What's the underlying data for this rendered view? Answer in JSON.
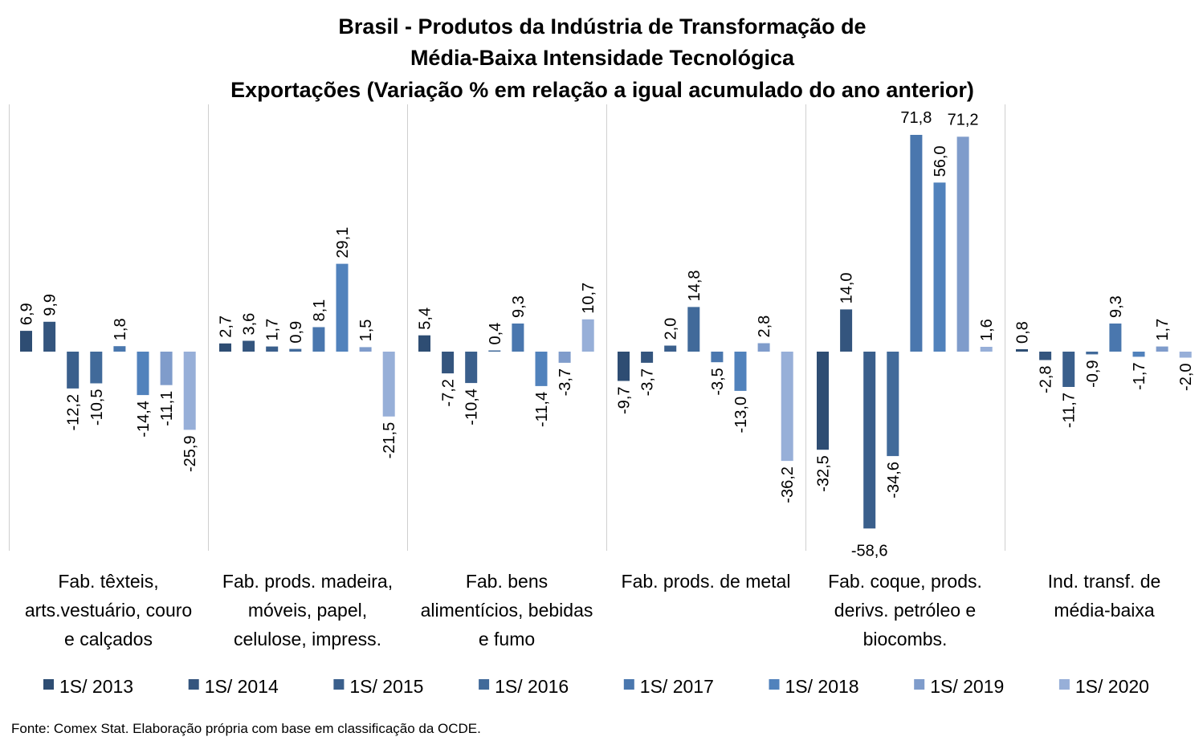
{
  "chart_data": {
    "type": "bar",
    "title": [
      "Brasil - Produtos da Indústria de Transformação de",
      "Média-Baixa Intensidade Tecnológica",
      "Exportações (Variação % em relação a igual acumulado do ano anterior)"
    ],
    "categories": [
      [
        "Fab. têxteis,",
        "arts.vestuário, couro",
        "e calçados"
      ],
      [
        "Fab. prods. madeira,",
        "móveis, papel,",
        "celulose, impress."
      ],
      [
        "Fab. bens",
        "alimentícios, bebidas",
        "e fumo"
      ],
      [
        "Fab. prods. de metal"
      ],
      [
        "Fab. coque, prods.",
        "derivs. petróleo e",
        "biocombs."
      ],
      [
        "Ind. transf. de",
        "média-baixa"
      ]
    ],
    "series": [
      {
        "name": "1S/ 2013",
        "color": "#2e4d73",
        "values": [
          6.9,
          2.7,
          5.4,
          -9.7,
          -32.5,
          0.8
        ]
      },
      {
        "name": "1S/ 2014",
        "color": "#34557e",
        "values": [
          9.9,
          3.6,
          -7.2,
          -3.7,
          14.0,
          -2.8
        ]
      },
      {
        "name": "1S/ 2015",
        "color": "#3a5f8c",
        "values": [
          -12.2,
          1.7,
          -10.4,
          2.0,
          -58.6,
          -11.7
        ]
      },
      {
        "name": "1S/ 2016",
        "color": "#416a9a",
        "values": [
          -10.5,
          0.9,
          0.4,
          14.8,
          -34.6,
          -0.9
        ]
      },
      {
        "name": "1S/ 2017",
        "color": "#4a77ae",
        "values": [
          1.8,
          8.1,
          9.3,
          -3.5,
          71.8,
          9.3
        ]
      },
      {
        "name": "1S/ 2018",
        "color": "#5182bc",
        "values": [
          -14.4,
          29.1,
          -11.4,
          -13.0,
          56.0,
          -1.7
        ]
      },
      {
        "name": "1S/ 2019",
        "color": "#7f9ccb",
        "values": [
          -11.1,
          1.5,
          -3.7,
          2.8,
          71.2,
          1.7
        ]
      },
      {
        "name": "1S/ 2020",
        "color": "#97afd8",
        "values": [
          -25.9,
          -21.5,
          10.7,
          -36.2,
          1.6,
          -2.0
        ]
      }
    ],
    "ylim": [
      -66,
      80
    ],
    "decimal_separator": ",",
    "legend_position": "bottom",
    "grid": false,
    "source": "Fonte: Comex Stat. Elaboração própria com base em classificação da OCDE."
  }
}
